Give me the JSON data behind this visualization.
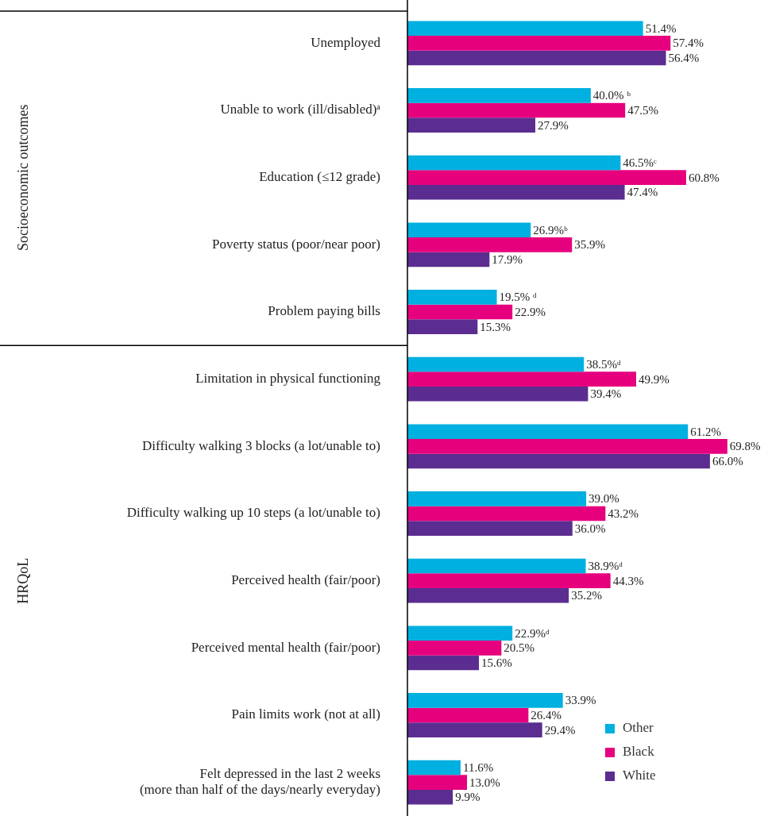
{
  "chart_data": {
    "type": "bar",
    "orientation": "horizontal",
    "categories": [
      "Unemployed",
      "Unable to work (ill/disabled)ᵃ",
      "Education (≤12 grade)",
      "Poverty status (poor/near poor)",
      "Problem paying bills",
      "Limitation in physical functioning",
      "Difficulty walking 3 blocks (a lot/unable to)",
      "Difficulty walking up 10 steps (a lot/unable to)",
      "Perceived health (fair/poor)",
      "Perceived mental health (fair/poor)",
      "Pain limits work (not at all)",
      "Felt depressed in the last 2 weeks\n(more than half of the days/nearly everyday)"
    ],
    "series": [
      {
        "name": "Other",
        "color": "#00b0e0",
        "values": [
          51.4,
          40.0,
          46.5,
          26.9,
          19.5,
          38.5,
          61.2,
          39.0,
          38.9,
          22.9,
          33.9,
          11.6
        ],
        "value_labels": [
          "51.4%",
          "40.0% ᵇ",
          "46.5%ᶜ",
          "26.9%ᵇ",
          "19.5% ᵈ",
          "38.5%ᵈ",
          "61.2%",
          "39.0%",
          "38.9%ᵈ",
          "22.9%ᵈ",
          "33.9%",
          "11.6%"
        ]
      },
      {
        "name": "Black",
        "color": "#e6007e",
        "values": [
          57.4,
          47.5,
          60.8,
          35.9,
          22.9,
          49.9,
          69.8,
          43.2,
          44.3,
          20.5,
          26.4,
          13.0
        ],
        "value_labels": [
          "57.4%",
          "47.5%",
          "60.8%",
          "35.9%",
          "22.9%",
          "49.9%",
          "69.8%",
          "43.2%",
          "44.3%",
          "20.5%",
          "26.4%",
          "13.0%"
        ]
      },
      {
        "name": "White",
        "color": "#5b2d90",
        "values": [
          56.4,
          27.9,
          47.4,
          17.9,
          15.3,
          39.4,
          66.0,
          36.0,
          35.2,
          15.6,
          29.4,
          9.9
        ],
        "value_labels": [
          "56.4%",
          "27.9%",
          "47.4%",
          "17.9%",
          "15.3%",
          "39.4%",
          "66.0%",
          "36.0%",
          "35.2%",
          "15.6%",
          "29.4%",
          "9.9%"
        ]
      }
    ],
    "tick_labels": "y",
    "grid": false,
    "legend": "bottom right",
    "annotations": [
      "Socioeconomic outcomes",
      "HRQoL"
    ]
  }
}
